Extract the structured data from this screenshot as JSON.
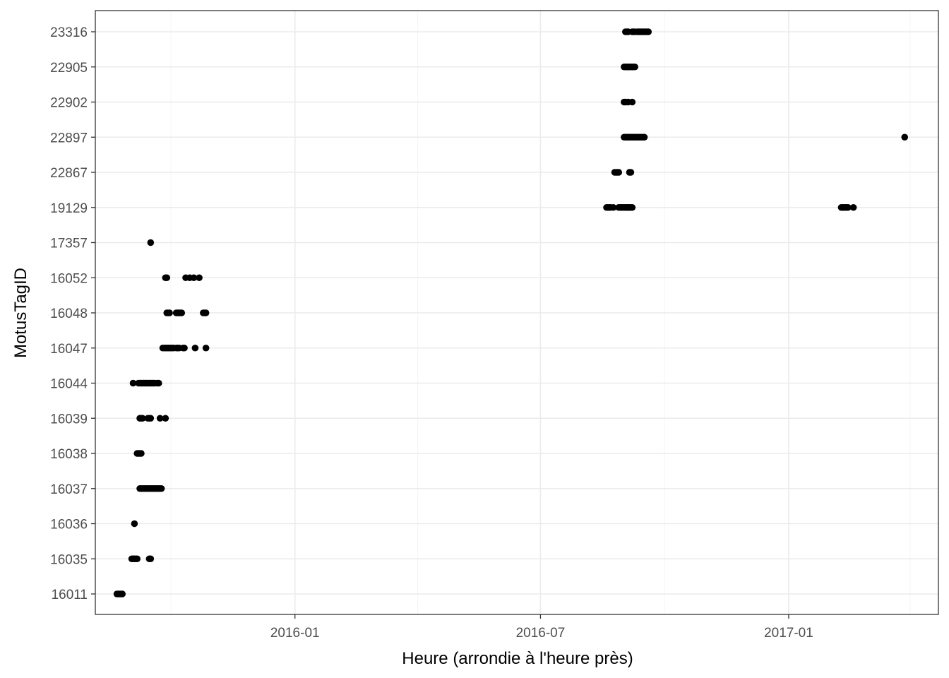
{
  "chart_data": {
    "type": "scatter",
    "xlabel": "Heure (arrondie à l'heure près)",
    "ylabel": "MotusTagID",
    "x_type": "date",
    "xlim": [
      "2015-08-06",
      "2017-04-22"
    ],
    "x_ticks": [
      "2016-01",
      "2016-07",
      "2017-01"
    ],
    "x_minor_ticks": [
      "2015-10-01",
      "2016-04-01",
      "2016-10-01",
      "2017-04-01"
    ],
    "categories": [
      "16011",
      "16035",
      "16036",
      "16037",
      "16038",
      "16039",
      "16044",
      "16047",
      "16048",
      "16052",
      "17357",
      "19129",
      "22867",
      "22897",
      "22902",
      "22905",
      "23316"
    ],
    "grid": true,
    "colors": {
      "point": "#000000",
      "grid": "#ebebeb",
      "panel_border": "#333333"
    },
    "series": [
      {
        "tag": "16011",
        "x": [
          "2015-08-22",
          "2015-08-23",
          "2015-08-24",
          "2015-08-25",
          "2015-08-26"
        ]
      },
      {
        "tag": "16035",
        "x": [
          "2015-09-02",
          "2015-09-03",
          "2015-09-04",
          "2015-09-05",
          "2015-09-06",
          "2015-09-15",
          "2015-09-16"
        ]
      },
      {
        "tag": "16036",
        "x": [
          "2015-09-04"
        ]
      },
      {
        "tag": "16037",
        "x": [
          "2015-09-08",
          "2015-09-09",
          "2015-09-10",
          "2015-09-11",
          "2015-09-12",
          "2015-09-13",
          "2015-09-14",
          "2015-09-15",
          "2015-09-16",
          "2015-09-17",
          "2015-09-18",
          "2015-09-19",
          "2015-09-20",
          "2015-09-21",
          "2015-09-22",
          "2015-09-23",
          "2015-09-24"
        ]
      },
      {
        "tag": "16038",
        "x": [
          "2015-09-06",
          "2015-09-07",
          "2015-09-08",
          "2015-09-09"
        ]
      },
      {
        "tag": "16039",
        "x": [
          "2015-09-08",
          "2015-09-09",
          "2015-09-10",
          "2015-09-14",
          "2015-09-15",
          "2015-09-16",
          "2015-09-23",
          "2015-09-27"
        ]
      },
      {
        "tag": "16044",
        "x": [
          "2015-09-03",
          "2015-09-07",
          "2015-09-08",
          "2015-09-09",
          "2015-09-10",
          "2015-09-11",
          "2015-09-12",
          "2015-09-13",
          "2015-09-14",
          "2015-09-15",
          "2015-09-16",
          "2015-09-17",
          "2015-09-18",
          "2015-09-19",
          "2015-09-21",
          "2015-09-22"
        ]
      },
      {
        "tag": "16047",
        "x": [
          "2015-09-25",
          "2015-09-26",
          "2015-09-27",
          "2015-09-28",
          "2015-09-29",
          "2015-09-30",
          "2015-10-01",
          "2015-10-02",
          "2015-10-03",
          "2015-10-05",
          "2015-10-06",
          "2015-10-07",
          "2015-10-10",
          "2015-10-11",
          "2015-10-19",
          "2015-10-27"
        ]
      },
      {
        "tag": "16048",
        "x": [
          "2015-09-28",
          "2015-09-29",
          "2015-09-30",
          "2015-10-05",
          "2015-10-06",
          "2015-10-07",
          "2015-10-08",
          "2015-10-09",
          "2015-10-25",
          "2015-10-26",
          "2015-10-27"
        ]
      },
      {
        "tag": "16052",
        "x": [
          "2015-09-27",
          "2015-09-28",
          "2015-10-12",
          "2015-10-15",
          "2015-10-18",
          "2015-10-22"
        ]
      },
      {
        "tag": "17357",
        "x": [
          "2015-09-16"
        ]
      },
      {
        "tag": "19129",
        "x": [
          "2016-08-19",
          "2016-08-20",
          "2016-08-21",
          "2016-08-22",
          "2016-08-24",
          "2016-08-28",
          "2016-08-29",
          "2016-08-30",
          "2016-08-31",
          "2016-09-01",
          "2016-09-02",
          "2016-09-03",
          "2016-09-04",
          "2016-09-05",
          "2016-09-06",
          "2016-09-07",
          "2017-02-09",
          "2017-02-10",
          "2017-02-11",
          "2017-02-12",
          "2017-02-13",
          "2017-02-14",
          "2017-02-18"
        ]
      },
      {
        "tag": "22867",
        "x": [
          "2016-08-25",
          "2016-08-26",
          "2016-08-27",
          "2016-08-28",
          "2016-09-05",
          "2016-09-06"
        ]
      },
      {
        "tag": "22897",
        "x": [
          "2016-09-01",
          "2016-09-02",
          "2016-09-03",
          "2016-09-04",
          "2016-09-05",
          "2016-09-06",
          "2016-09-07",
          "2016-09-08",
          "2016-09-09",
          "2016-09-10",
          "2016-09-11",
          "2016-09-12",
          "2016-09-13",
          "2016-09-14",
          "2016-09-15",
          "2016-09-16",
          "2017-03-28"
        ]
      },
      {
        "tag": "22902",
        "x": [
          "2016-09-01",
          "2016-09-02",
          "2016-09-04",
          "2016-09-07"
        ]
      },
      {
        "tag": "22905",
        "x": [
          "2016-09-01",
          "2016-09-02",
          "2016-09-03",
          "2016-09-04",
          "2016-09-05",
          "2016-09-06",
          "2016-09-07",
          "2016-09-08",
          "2016-09-09"
        ]
      },
      {
        "tag": "23316",
        "x": [
          "2016-09-02",
          "2016-09-03",
          "2016-09-04",
          "2016-09-07",
          "2016-09-08",
          "2016-09-09",
          "2016-09-11",
          "2016-09-12",
          "2016-09-13",
          "2016-09-14",
          "2016-09-15",
          "2016-09-16",
          "2016-09-17",
          "2016-09-18",
          "2016-09-19"
        ]
      }
    ]
  }
}
